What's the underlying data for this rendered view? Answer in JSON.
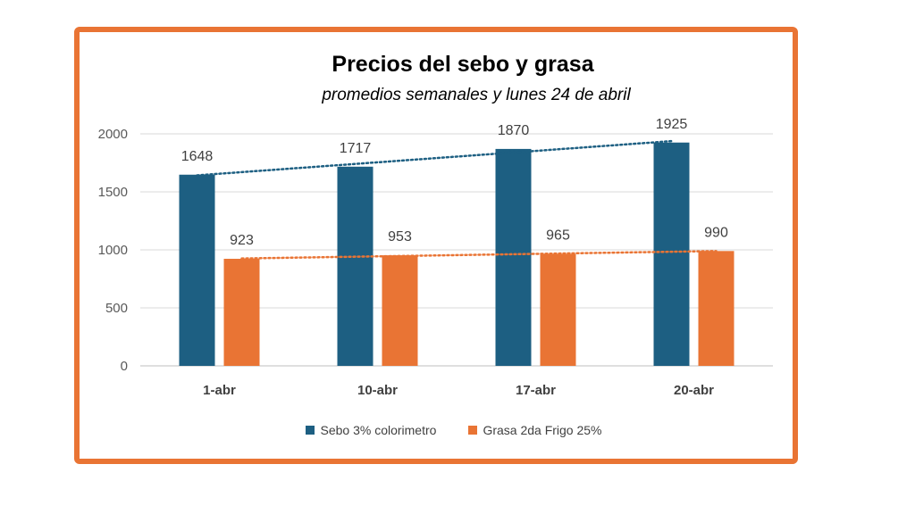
{
  "colors": {
    "series1": "#1d5f82",
    "series2": "#e97434",
    "frame": "#e97434",
    "grid": "#d9d9d9",
    "axis_text": "#595959",
    "label_text": "#404040"
  },
  "chart_data": {
    "type": "bar",
    "title": "Precios del sebo y grasa",
    "subtitle": "promedios semanales y lunes 24 de abril",
    "categories": [
      "1-abr",
      "10-abr",
      "17-abr",
      "20-abr"
    ],
    "series": [
      {
        "name": "Sebo 3% colorimetro",
        "values": [
          1648,
          1717,
          1870,
          1925
        ],
        "trendline": "linear"
      },
      {
        "name": "Grasa 2da Frigo 25%",
        "values": [
          923,
          953,
          965,
          990
        ],
        "trendline": "linear"
      }
    ],
    "ylim": [
      0,
      2000
    ],
    "yticks": [
      0,
      500,
      1000,
      1500,
      2000
    ],
    "xlabel": "",
    "ylabel": "",
    "grid": true,
    "legend": "bottom",
    "data_labels": true
  }
}
